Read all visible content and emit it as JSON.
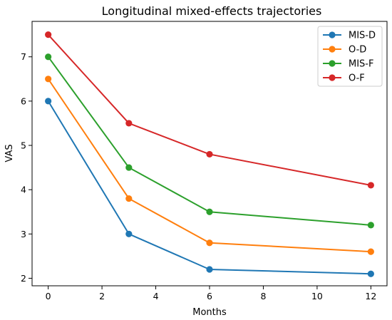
{
  "chart_data": {
    "type": "line",
    "title": "Longitudinal mixed-effects trajectories",
    "xlabel": "Months",
    "ylabel": "VAS",
    "x": [
      0,
      3,
      6,
      12
    ],
    "xlim": [
      -0.6,
      12.6
    ],
    "ylim": [
      1.83,
      7.8
    ],
    "xticks": [
      0,
      2,
      4,
      6,
      8,
      10,
      12
    ],
    "yticks": [
      2,
      3,
      4,
      5,
      6,
      7
    ],
    "grid": false,
    "legend_position": "top-right",
    "series": [
      {
        "name": "MIS-D",
        "color": "#1f77b4",
        "values": [
          6.0,
          3.0,
          2.2,
          2.1
        ]
      },
      {
        "name": "O-D",
        "color": "#ff7f0e",
        "values": [
          6.5,
          3.8,
          2.8,
          2.6
        ]
      },
      {
        "name": "MIS-F",
        "color": "#2ca02c",
        "values": [
          7.0,
          4.5,
          3.5,
          3.2
        ]
      },
      {
        "name": "O-F",
        "color": "#d62728",
        "values": [
          7.5,
          5.5,
          4.8,
          4.1
        ]
      }
    ]
  }
}
